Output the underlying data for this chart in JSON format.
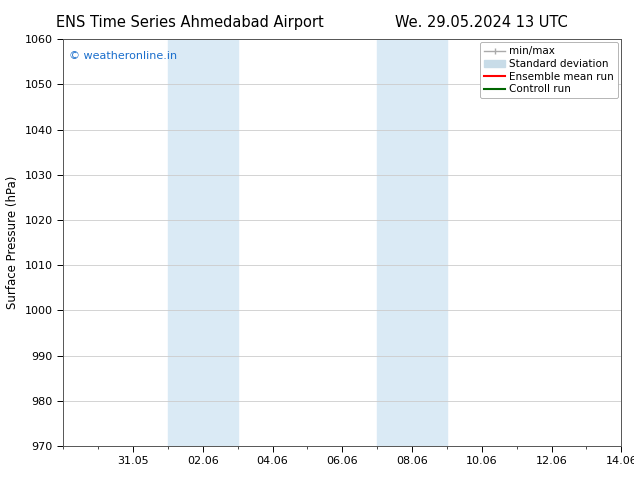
{
  "title_left": "ENS Time Series Ahmedabad Airport",
  "title_right": "We. 29.05.2024 13 UTC",
  "ylabel": "Surface Pressure (hPa)",
  "ylim": [
    970,
    1060
  ],
  "yticks": [
    970,
    980,
    990,
    1000,
    1010,
    1020,
    1030,
    1040,
    1050,
    1060
  ],
  "xtick_labels": [
    "31.05",
    "02.06",
    "04.06",
    "06.06",
    "08.06",
    "10.06",
    "12.06",
    "14.06"
  ],
  "xtick_positions": [
    2,
    4,
    6,
    8,
    10,
    12,
    14,
    16
  ],
  "xlim": [
    0,
    16
  ],
  "shaded_regions": [
    {
      "start": 3,
      "end": 5,
      "color": "#daeaf5"
    },
    {
      "start": 9,
      "end": 11,
      "color": "#daeaf5"
    }
  ],
  "copyright_text": "© weatheronline.in",
  "copyright_color": "#1a6ecc",
  "bg_color": "#ffffff",
  "grid_color": "#cccccc",
  "spine_color": "#555555",
  "title_fontsize": 10.5,
  "label_fontsize": 8.5,
  "tick_fontsize": 8,
  "legend_fontsize": 7.5,
  "minmax_color": "#aaaaaa",
  "stddev_color": "#c8dce8",
  "ensemble_color": "#ff0000",
  "control_color": "#006600"
}
